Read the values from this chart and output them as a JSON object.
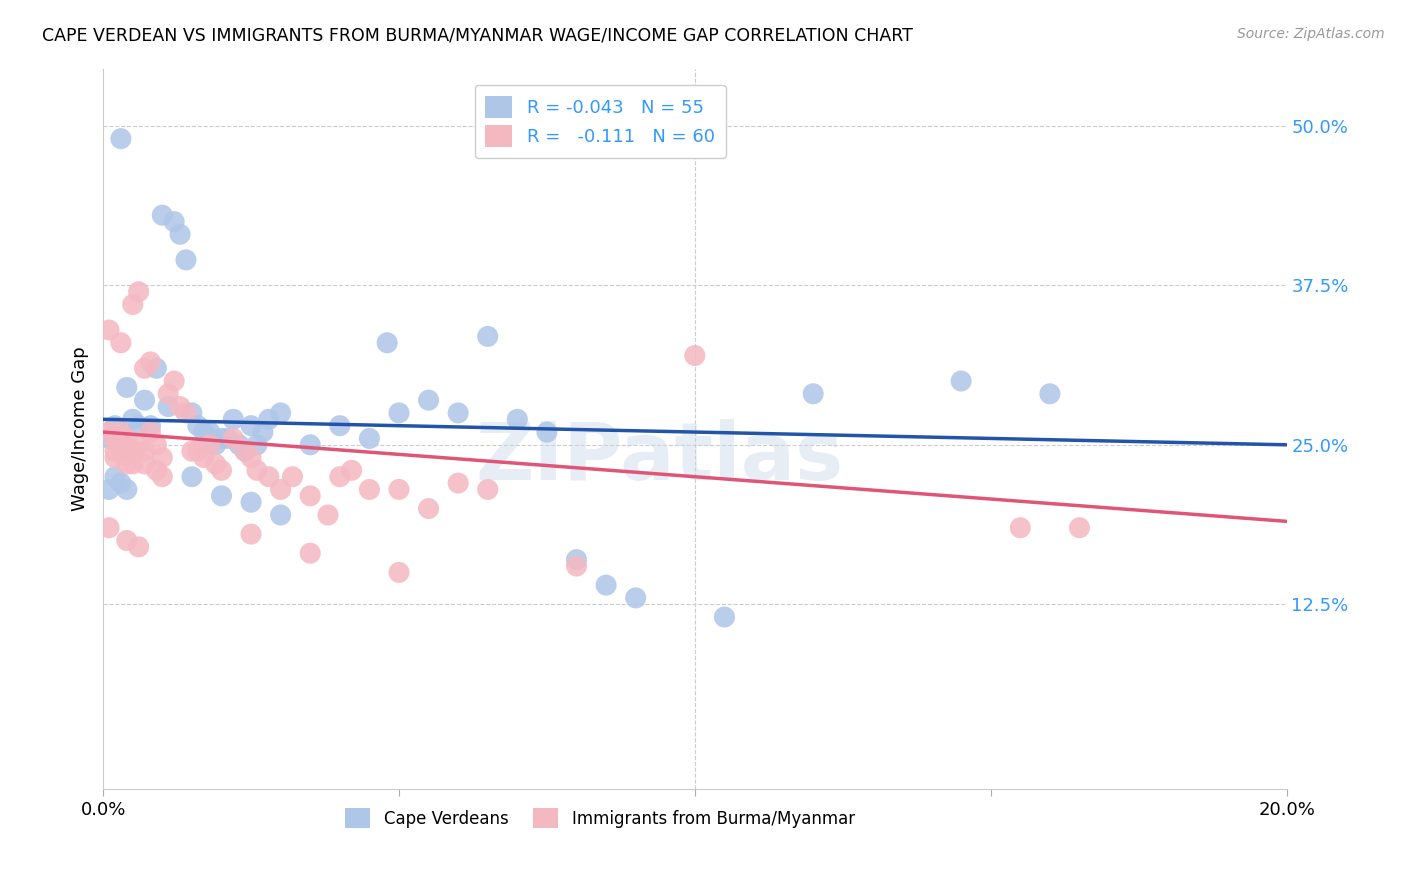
{
  "title": "CAPE VERDEAN VS IMMIGRANTS FROM BURMA/MYANMAR WAGE/INCOME GAP CORRELATION CHART",
  "source": "Source: ZipAtlas.com",
  "ylabel": "Wage/Income Gap",
  "xlim": [
    0.0,
    0.2
  ],
  "ylim": [
    -0.02,
    0.545
  ],
  "yticks": [
    0.0,
    0.125,
    0.25,
    0.375,
    0.5
  ],
  "ytick_labels": [
    "",
    "12.5%",
    "25.0%",
    "37.5%",
    "50.0%"
  ],
  "blue_color": "#aec6e8",
  "pink_color": "#f4b8c1",
  "blue_line_color": "#2255aa",
  "pink_line_color": "#e05577",
  "watermark": "ZIPatlas",
  "blue_line": {
    "x0": 0.0,
    "y0": 0.27,
    "x1": 0.2,
    "y1": 0.25
  },
  "pink_line": {
    "x0": 0.0,
    "y0": 0.26,
    "x1": 0.2,
    "y1": 0.19
  },
  "blue_points": [
    [
      0.003,
      0.49
    ],
    [
      0.01,
      0.43
    ],
    [
      0.012,
      0.425
    ],
    [
      0.013,
      0.415
    ],
    [
      0.014,
      0.395
    ],
    [
      0.009,
      0.31
    ],
    [
      0.004,
      0.295
    ],
    [
      0.007,
      0.285
    ],
    [
      0.011,
      0.28
    ],
    [
      0.005,
      0.27
    ],
    [
      0.006,
      0.265
    ],
    [
      0.008,
      0.265
    ],
    [
      0.015,
      0.275
    ],
    [
      0.016,
      0.265
    ],
    [
      0.017,
      0.26
    ],
    [
      0.018,
      0.26
    ],
    [
      0.02,
      0.255
    ],
    [
      0.021,
      0.255
    ],
    [
      0.022,
      0.27
    ],
    [
      0.025,
      0.265
    ],
    [
      0.002,
      0.265
    ],
    [
      0.019,
      0.25
    ],
    [
      0.023,
      0.25
    ],
    [
      0.024,
      0.245
    ],
    [
      0.026,
      0.25
    ],
    [
      0.027,
      0.26
    ],
    [
      0.03,
      0.275
    ],
    [
      0.003,
      0.255
    ],
    [
      0.028,
      0.27
    ],
    [
      0.035,
      0.25
    ],
    [
      0.04,
      0.265
    ],
    [
      0.045,
      0.255
    ],
    [
      0.048,
      0.33
    ],
    [
      0.05,
      0.275
    ],
    [
      0.055,
      0.285
    ],
    [
      0.06,
      0.275
    ],
    [
      0.065,
      0.335
    ],
    [
      0.07,
      0.27
    ],
    [
      0.075,
      0.26
    ],
    [
      0.001,
      0.255
    ],
    [
      0.001,
      0.215
    ],
    [
      0.002,
      0.225
    ],
    [
      0.003,
      0.22
    ],
    [
      0.004,
      0.215
    ],
    [
      0.015,
      0.225
    ],
    [
      0.02,
      0.21
    ],
    [
      0.025,
      0.205
    ],
    [
      0.03,
      0.195
    ],
    [
      0.08,
      0.16
    ],
    [
      0.085,
      0.14
    ],
    [
      0.09,
      0.13
    ],
    [
      0.105,
      0.115
    ],
    [
      0.12,
      0.29
    ],
    [
      0.145,
      0.3
    ],
    [
      0.16,
      0.29
    ]
  ],
  "pink_points": [
    [
      0.001,
      0.26
    ],
    [
      0.002,
      0.255
    ],
    [
      0.002,
      0.245
    ],
    [
      0.003,
      0.26
    ],
    [
      0.003,
      0.25
    ],
    [
      0.004,
      0.255
    ],
    [
      0.004,
      0.245
    ],
    [
      0.005,
      0.245
    ],
    [
      0.005,
      0.235
    ],
    [
      0.006,
      0.25
    ],
    [
      0.007,
      0.245
    ],
    [
      0.007,
      0.235
    ],
    [
      0.008,
      0.26
    ],
    [
      0.009,
      0.25
    ],
    [
      0.01,
      0.24
    ],
    [
      0.001,
      0.34
    ],
    [
      0.003,
      0.33
    ],
    [
      0.005,
      0.36
    ],
    [
      0.006,
      0.37
    ],
    [
      0.007,
      0.31
    ],
    [
      0.011,
      0.29
    ],
    [
      0.012,
      0.3
    ],
    [
      0.013,
      0.28
    ],
    [
      0.014,
      0.275
    ],
    [
      0.008,
      0.315
    ],
    [
      0.002,
      0.24
    ],
    [
      0.004,
      0.235
    ],
    [
      0.009,
      0.23
    ],
    [
      0.01,
      0.225
    ],
    [
      0.015,
      0.245
    ],
    [
      0.016,
      0.245
    ],
    [
      0.017,
      0.24
    ],
    [
      0.018,
      0.25
    ],
    [
      0.019,
      0.235
    ],
    [
      0.02,
      0.23
    ],
    [
      0.022,
      0.255
    ],
    [
      0.024,
      0.245
    ],
    [
      0.025,
      0.24
    ],
    [
      0.026,
      0.23
    ],
    [
      0.028,
      0.225
    ],
    [
      0.03,
      0.215
    ],
    [
      0.032,
      0.225
    ],
    [
      0.035,
      0.21
    ],
    [
      0.038,
      0.195
    ],
    [
      0.04,
      0.225
    ],
    [
      0.042,
      0.23
    ],
    [
      0.045,
      0.215
    ],
    [
      0.05,
      0.215
    ],
    [
      0.055,
      0.2
    ],
    [
      0.06,
      0.22
    ],
    [
      0.065,
      0.215
    ],
    [
      0.001,
      0.185
    ],
    [
      0.004,
      0.175
    ],
    [
      0.006,
      0.17
    ],
    [
      0.025,
      0.18
    ],
    [
      0.035,
      0.165
    ],
    [
      0.05,
      0.15
    ],
    [
      0.08,
      0.155
    ],
    [
      0.1,
      0.32
    ],
    [
      0.155,
      0.185
    ],
    [
      0.165,
      0.185
    ]
  ]
}
